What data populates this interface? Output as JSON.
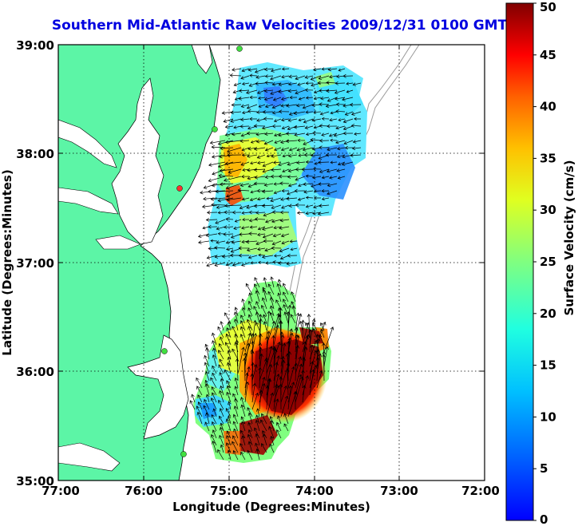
{
  "title": "Southern Mid-Atlantic Raw Velocities 2009/12/31 0100 GMT",
  "map": {
    "xlabel": "Longitude (Degrees:Minutes)",
    "ylabel": "Latitude (Degrees:Minutes)",
    "x_ticks": [
      "77:00",
      "76:00",
      "75:00",
      "74:00",
      "73:00",
      "72:00"
    ],
    "y_ticks": [
      "39:00",
      "38:00",
      "37:00",
      "36:00",
      "35:00"
    ],
    "lon_range": [
      -77,
      -72
    ],
    "lat_range": [
      35,
      39
    ]
  },
  "colorbar": {
    "label": "Surface Velocity (cm/s)",
    "ticks": [
      "0",
      "5",
      "10",
      "15",
      "20",
      "25",
      "30",
      "35",
      "40",
      "45",
      "50"
    ],
    "range": [
      0,
      50
    ]
  },
  "colors": {
    "land": "#5cf5a6",
    "title": "#0000e0"
  }
}
